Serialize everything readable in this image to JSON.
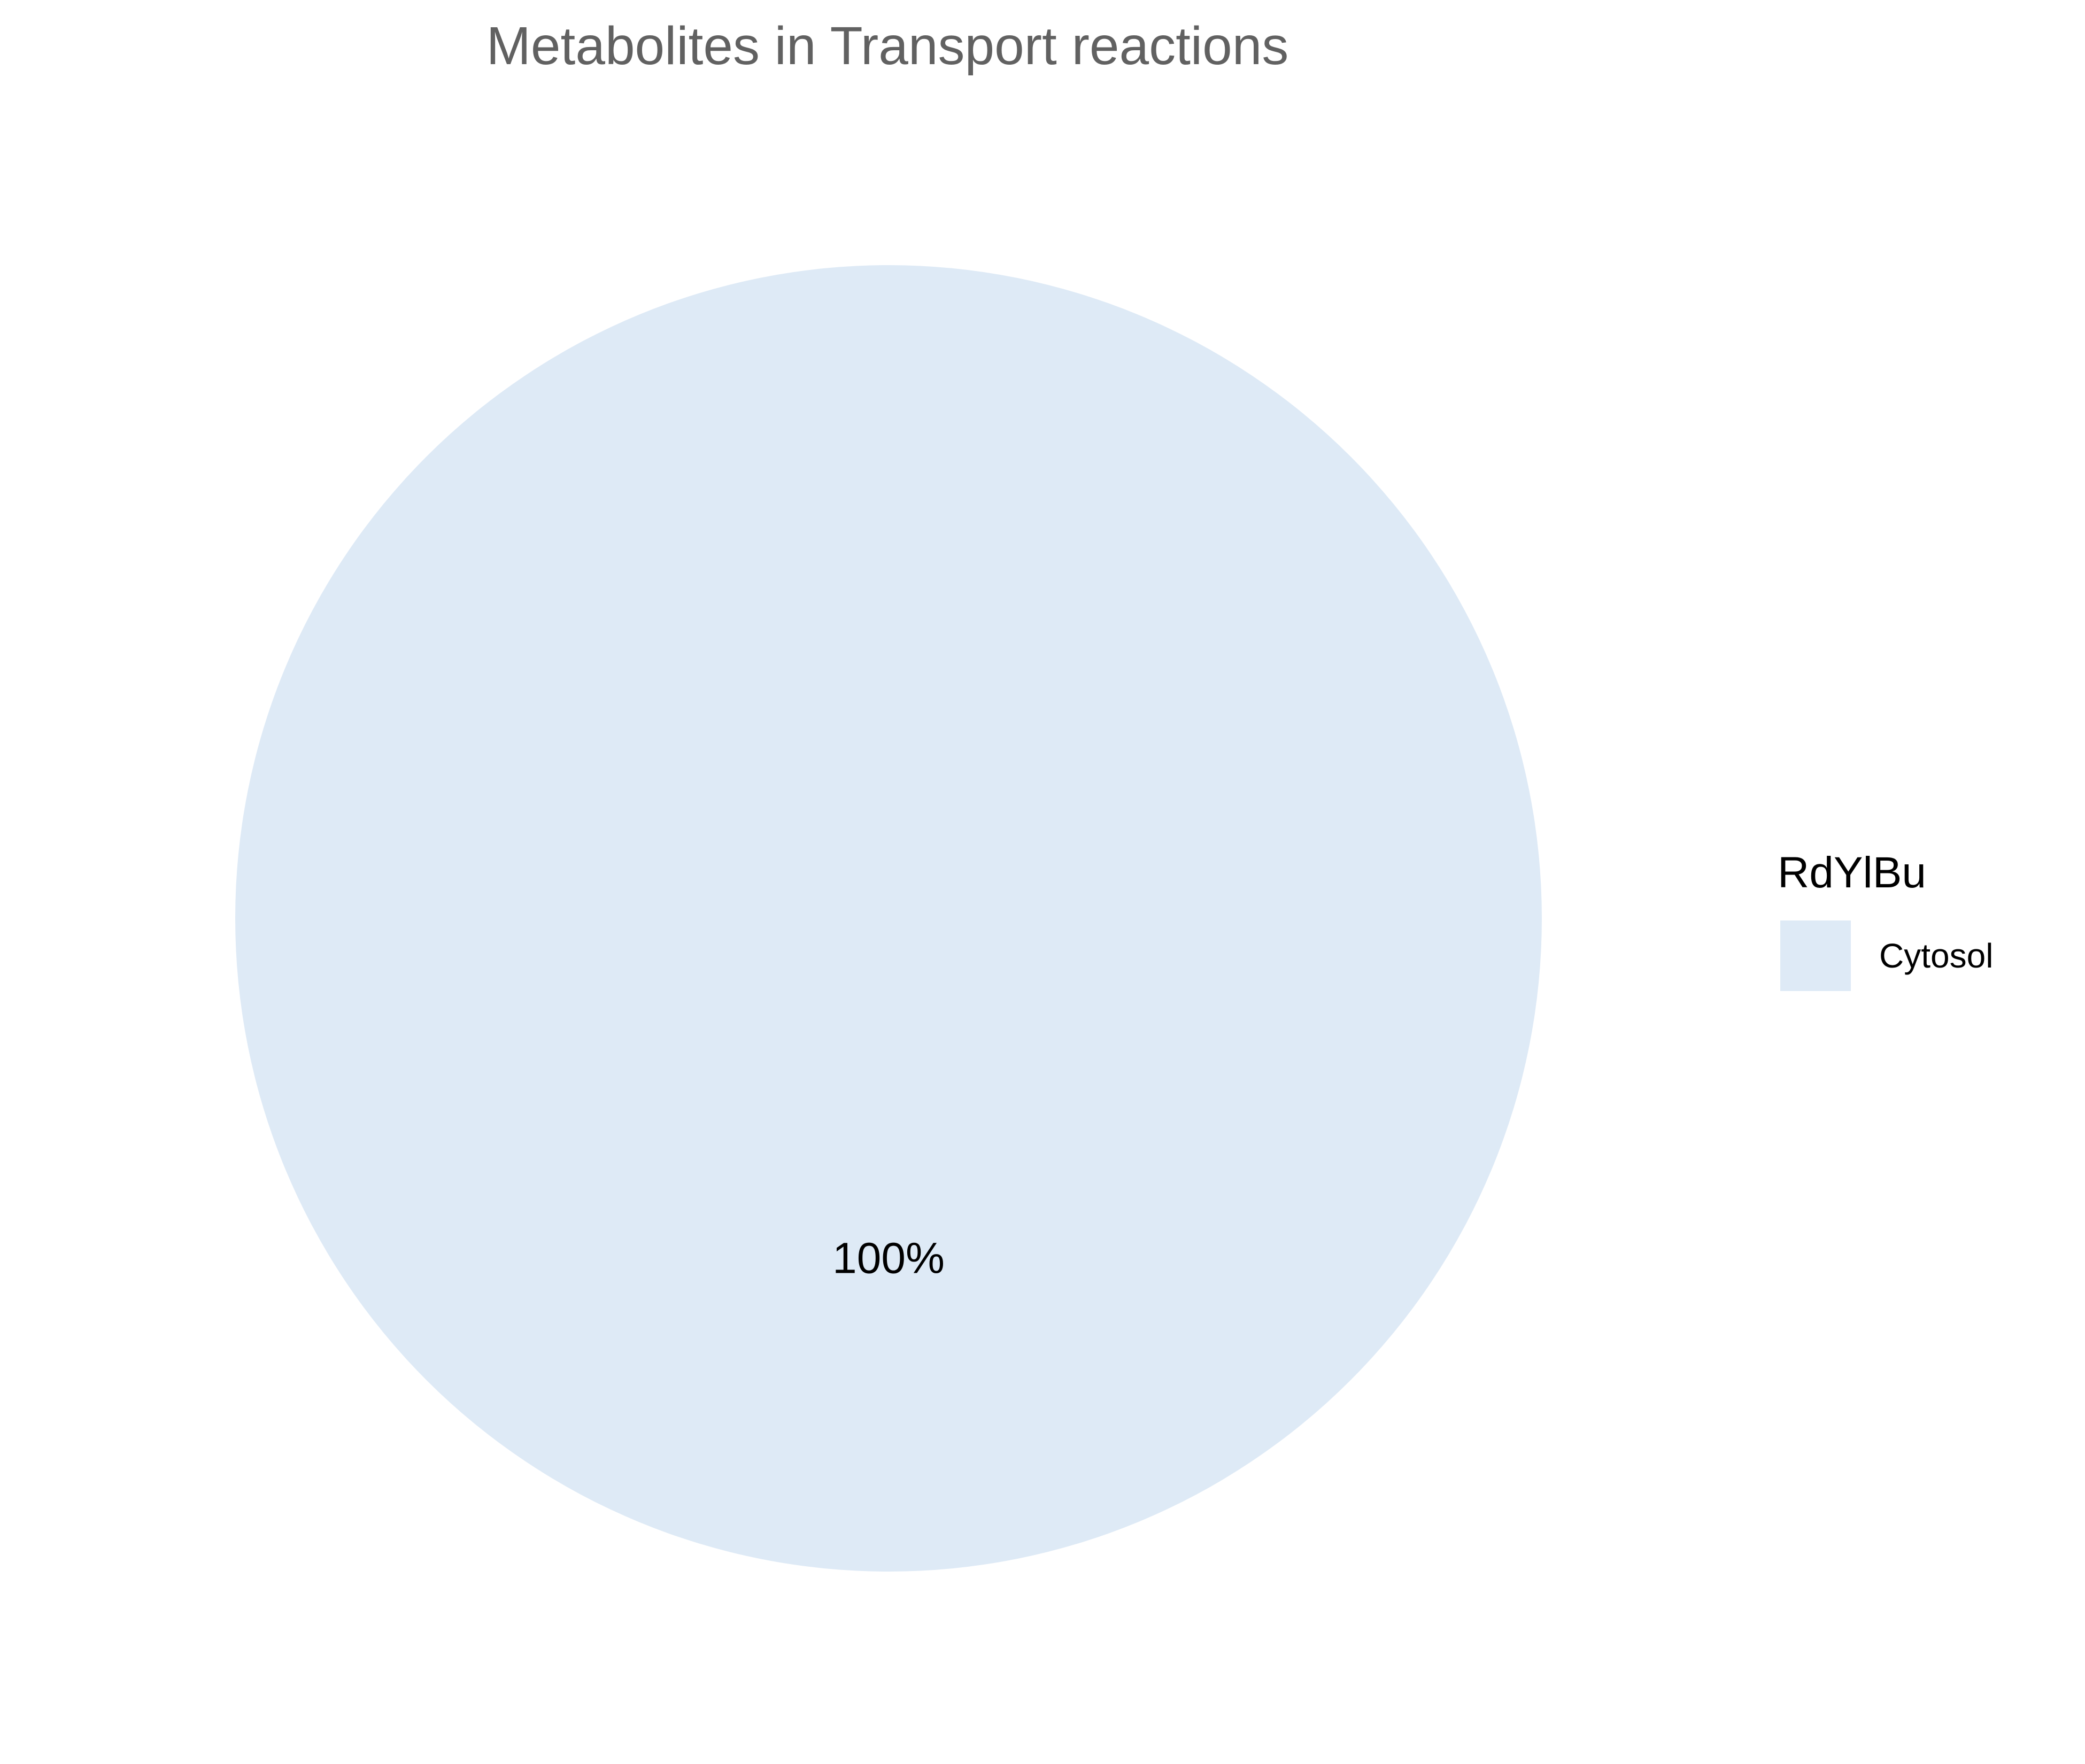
{
  "chart_data": {
    "type": "pie",
    "title": "Metabolites in Transport reactions",
    "categories": [
      "Cytosol"
    ],
    "values": [
      100
    ],
    "labels": [
      "100%"
    ],
    "colors": [
      "#DEEAF6"
    ],
    "legend": {
      "title": "RdYlBu",
      "position": "right",
      "entries": [
        "Cytosol"
      ]
    }
  }
}
